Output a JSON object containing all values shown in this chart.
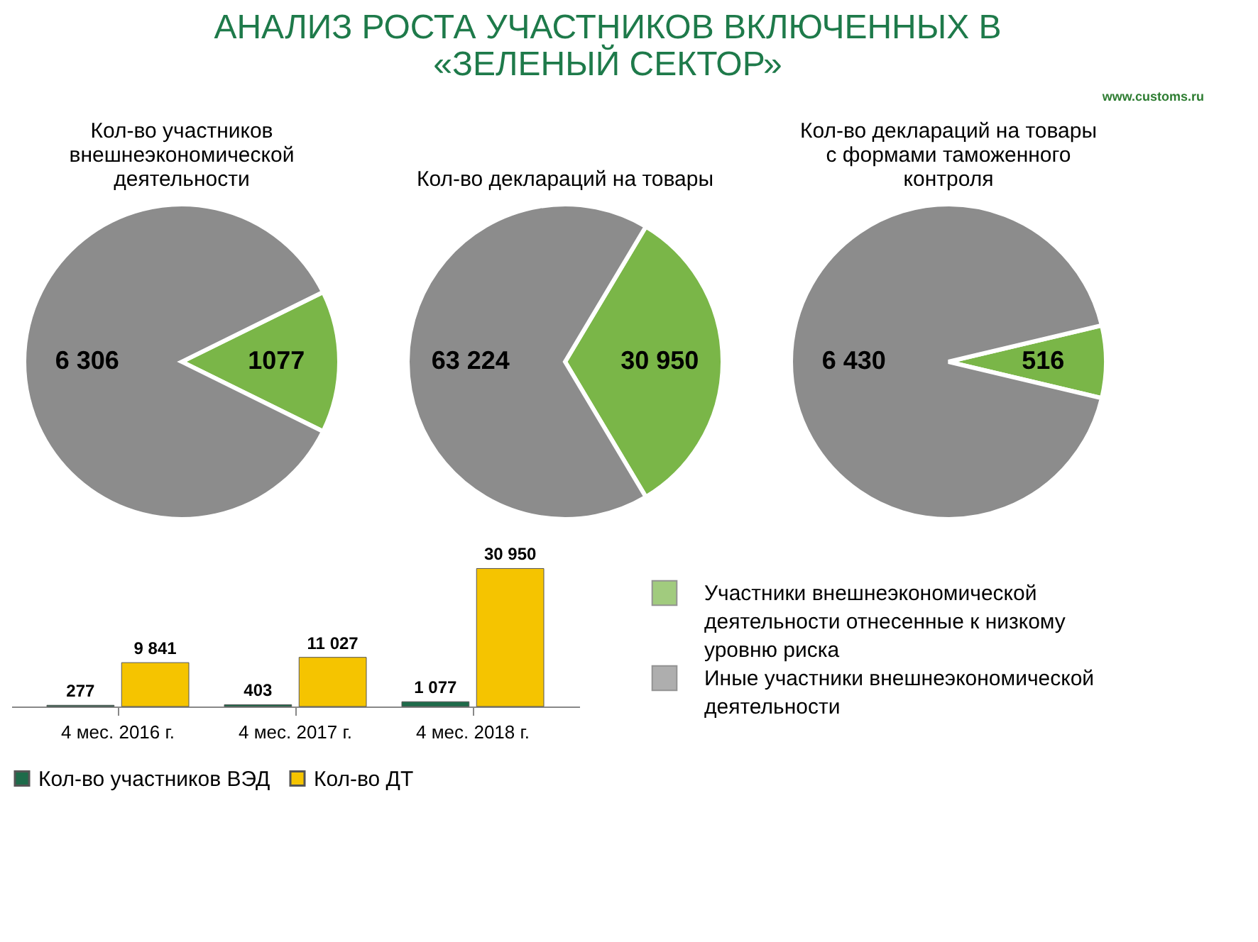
{
  "chart_data": [
    {
      "type": "other",
      "title": "АНАЛИЗ РОСТА УЧАСТНИКОВ ВКЛЮЧЕННЫХ В\n«ЗЕЛЕНЫЙ СЕКТОР»",
      "annotations": [
        "www.customs.ru"
      ]
    },
    {
      "type": "pie",
      "title": "Кол-во участников\nвнешнеэкономической\nдеятельности",
      "categories": [
        "Участники внешнеэкономической деятельности отнесенные к низкому уровню риска",
        "Иные участники внешнеэкономической деятельности"
      ],
      "values": [
        1077,
        6306
      ],
      "colors": [
        "#7ab648",
        "#8c8c8c"
      ],
      "data_labels": true,
      "value_labels": [
        "1077",
        "6 306"
      ],
      "legend": "bottom right"
    },
    {
      "type": "pie",
      "title": "Кол-во деклараций на товары",
      "values": [
        30950,
        63224
      ],
      "colors": [
        "#7ab648",
        "#8c8c8c"
      ],
      "data_labels": true,
      "value_labels": [
        "30 950",
        "63 224"
      ]
    },
    {
      "type": "pie",
      "title": "Кол-во деклараций на товары\nс формами таможенного\nконтроля",
      "values": [
        516,
        6430
      ],
      "colors": [
        "#7ab648",
        "#8c8c8c"
      ],
      "data_labels": true,
      "value_labels": [
        "516",
        "6 430"
      ]
    },
    {
      "type": "bar",
      "categories": [
        "4 мес. 2016 г.",
        "4 мес. 2017 г.",
        "4 мес. 2018 г."
      ],
      "legend": "bottom",
      "data_labels": true,
      "series": [
        {
          "name": "Кол-во участников ВЭД",
          "color": "#1e6b4a",
          "values": [
            277,
            403,
            1077
          ],
          "value_labels": [
            "277",
            "403",
            "1 077"
          ]
        },
        {
          "name": "Кол-во ДТ",
          "color": "#f5c400",
          "values": [
            9841,
            11027,
            30950
          ],
          "value_labels": [
            "9 841",
            "11 027",
            "30 950"
          ]
        }
      ]
    }
  ]
}
